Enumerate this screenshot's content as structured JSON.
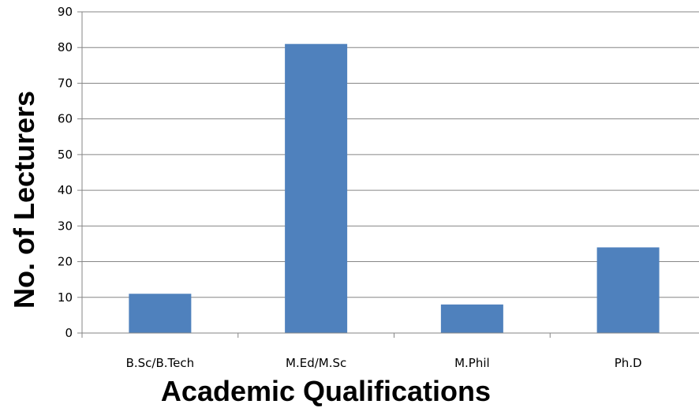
{
  "chart_data": {
    "type": "bar",
    "categories": [
      "B.Sc/B.Tech",
      "M.Ed/M.Sc",
      "M.Phil",
      "Ph.D"
    ],
    "values": [
      11,
      81,
      8,
      24
    ],
    "xlabel": "Academic Qualifications",
    "ylabel": "No. of Lecturers",
    "ylim": [
      0,
      90
    ],
    "yticks": [
      0,
      10,
      20,
      30,
      40,
      50,
      60,
      70,
      80,
      90
    ],
    "grid": true,
    "bar_color": "#4F81BD",
    "grid_color": "#868686"
  }
}
